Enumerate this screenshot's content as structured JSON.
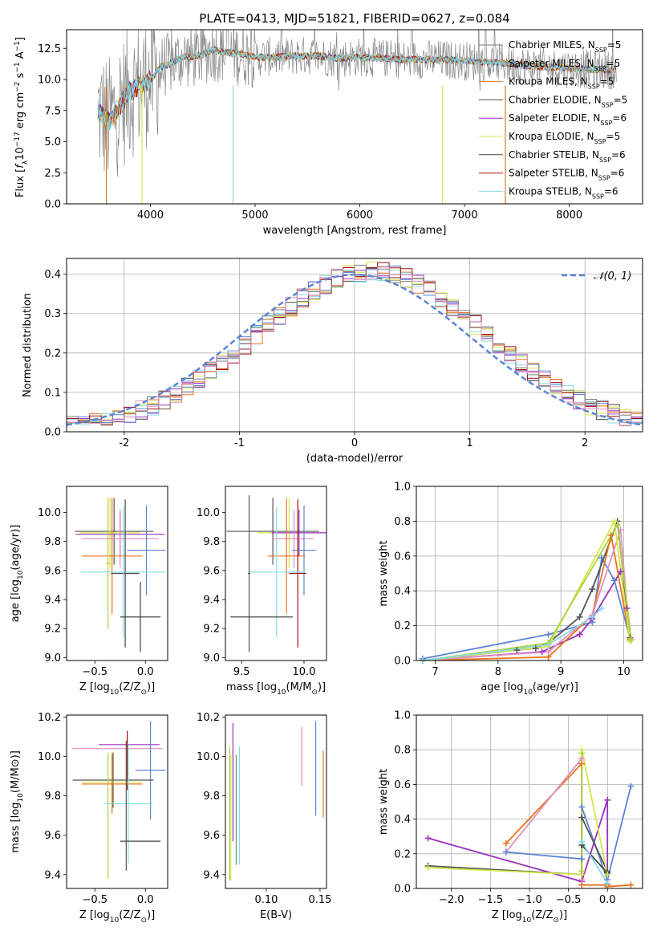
{
  "chart_data": [
    {
      "id": "spectrum",
      "type": "line",
      "title": "PLATE=0413, MJD=51821, FIBERID=0627, z=0.084",
      "xlabel": "wavelength [Angstrom, rest frame]",
      "ylabel": "Flux [fλ10^-17 erg cm^-2 s^-1 A^-1]",
      "xlim": [
        3200,
        8700
      ],
      "ylim": [
        0,
        14
      ],
      "xticks": [
        4000,
        5000,
        6000,
        7000,
        8000
      ],
      "yticks": [
        0.0,
        2.5,
        5.0,
        7.5,
        10.0,
        12.5
      ],
      "grid": false,
      "legend_position": "top-right",
      "series": [
        {
          "name": "Chabrier MILES, N_SSP=5",
          "color": "#7f7f7f"
        },
        {
          "name": "Salpeter MILES, N_SSP=5",
          "color": "#6fd0e0"
        },
        {
          "name": "Kroupa MILES, N_SSP=5",
          "color": "#e8751a"
        },
        {
          "name": "Chabrier ELODIE, N_SSP=5",
          "color": "#4a4a4a"
        },
        {
          "name": "Salpeter ELODIE, N_SSP=6",
          "color": "#9b30c0"
        },
        {
          "name": "Kroupa ELODIE, N_SSP=5",
          "color": "#d4e84a"
        },
        {
          "name": "Chabrier STELIB, N_SSP=6",
          "color": "#444444"
        },
        {
          "name": "Salpeter STELIB, N_SSP=6",
          "color": "#a01010"
        },
        {
          "name": "Kroupa STELIB, N_SSP=6",
          "color": "#88dbe6"
        }
      ],
      "continuum": {
        "x": [
          3500,
          3600,
          3700,
          3800,
          3900,
          4000,
          4100,
          4200,
          4300,
          4400,
          4500,
          4600,
          4700,
          4800,
          4900,
          5000,
          5200,
          5400,
          5600,
          5800,
          6000,
          6200,
          6400,
          6600,
          6800,
          7000,
          7200,
          7400,
          7600,
          7800,
          8000,
          8200,
          8400
        ],
        "y": [
          7.5,
          6.5,
          7.8,
          9.0,
          9.5,
          10.0,
          11.0,
          11.3,
          11.8,
          11.8,
          12.0,
          12.4,
          12.2,
          12.1,
          12.0,
          11.8,
          11.8,
          11.9,
          11.9,
          11.7,
          11.8,
          11.7,
          11.6,
          11.6,
          11.6,
          11.5,
          11.4,
          11.3,
          11.1,
          11.0,
          10.9,
          10.8,
          10.8
        ]
      },
      "dropouts": [
        3580,
        3920,
        4790,
        6790,
        7390
      ]
    },
    {
      "id": "residuals",
      "type": "line",
      "xlabel": "(data-model)/error",
      "ylabel": "Normed distribution",
      "xlim": [
        -2.5,
        2.5
      ],
      "ylim": [
        0,
        0.44
      ],
      "xticks": [
        -2,
        -1,
        0,
        1,
        2
      ],
      "yticks": [
        0.0,
        0.1,
        0.2,
        0.3,
        0.4
      ],
      "grid": true,
      "legend_position": "top-right",
      "reference": {
        "name": "𝒩(0, 1)",
        "color": "#5b84d6",
        "style": "dashed"
      },
      "bin_width": 0.1,
      "colors": [
        "#444444",
        "#9b30c0",
        "#d4e84a",
        "#e8751a",
        "#5b84d6",
        "#88dbe6",
        "#a01010",
        "#7f7f7f",
        "#e090c0"
      ]
    },
    {
      "id": "age-vs-z",
      "type": "scatter",
      "xlabel": "Z [log10(Z/Z⊙)]",
      "ylabel": "age  [log10(age/yr)]",
      "xlim": [
        -0.78,
        0.22
      ],
      "ylim": [
        8.98,
        10.18
      ],
      "xticks": [
        -0.5,
        0.0
      ],
      "xtick_labels": [
        "−0.5",
        "0.0"
      ],
      "yticks": [
        9.0,
        9.2,
        9.4,
        9.6,
        9.8,
        10.0
      ],
      "points": [
        {
          "x": -0.31,
          "y": 9.87,
          "xerr": 0.39,
          "yerr": 0.23,
          "color": "#555555"
        },
        {
          "x": -0.35,
          "y": 9.86,
          "xerr": 0.3,
          "yerr": 0.24,
          "color": "#d4e84a"
        },
        {
          "x": -0.25,
          "y": 9.85,
          "xerr": 0.44,
          "yerr": 0.16,
          "color": "#9b30c0"
        },
        {
          "x": -0.25,
          "y": 9.82,
          "xerr": 0.38,
          "yerr": 0.2,
          "color": "#e090c0"
        },
        {
          "x": -0.33,
          "y": 9.7,
          "xerr": 0.3,
          "yerr": 0.4,
          "color": "#e8751a"
        },
        {
          "x": 0.01,
          "y": 9.74,
          "xerr": 0.19,
          "yerr": 0.31,
          "color": "#5b84d6"
        },
        {
          "x": -0.2,
          "y": 9.58,
          "xerr": 0.14,
          "yerr": 0.51,
          "color": "#444444"
        },
        {
          "x": -0.22,
          "y": 9.59,
          "xerr": 0.42,
          "yerr": 0.45,
          "color": "#88dbe6"
        },
        {
          "x": -0.05,
          "y": 9.28,
          "xerr": 0.2,
          "yerr": 0.24,
          "color": "#444444"
        },
        {
          "x": -0.37,
          "y": 9.65,
          "xerr": 0.02,
          "yerr": 0.45,
          "color": "#aed13a"
        }
      ]
    },
    {
      "id": "age-vs-mass",
      "type": "scatter",
      "xlabel": "mass [log10(M/M⊙)]",
      "ylabel": "",
      "xlim": [
        9.37,
        10.18
      ],
      "ylim": [
        8.98,
        10.18
      ],
      "xticks": [
        9.5,
        10.0
      ],
      "yticks": [
        9.0,
        9.2,
        9.4,
        9.6,
        9.8,
        10.0
      ],
      "points": [
        {
          "x": 9.75,
          "y": 9.87,
          "xerr": 0.37,
          "yerr": 0.23,
          "color": "#555555"
        },
        {
          "x": 9.88,
          "y": 9.86,
          "xerr": 0.26,
          "yerr": 0.24,
          "color": "#d4e84a"
        },
        {
          "x": 9.96,
          "y": 9.86,
          "xerr": 0.22,
          "yerr": 0.16,
          "color": "#9b30c0"
        },
        {
          "x": 9.92,
          "y": 9.82,
          "xerr": 0.16,
          "yerr": 0.2,
          "color": "#e090c0"
        },
        {
          "x": 9.86,
          "y": 9.7,
          "xerr": 0.15,
          "yerr": 0.4,
          "color": "#e8751a"
        },
        {
          "x": 10.0,
          "y": 9.74,
          "xerr": 0.1,
          "yerr": 0.31,
          "color": "#5b84d6"
        },
        {
          "x": 9.95,
          "y": 9.58,
          "xerr": 0.07,
          "yerr": 0.51,
          "color": "#a01010"
        },
        {
          "x": 9.78,
          "y": 9.59,
          "xerr": 0.22,
          "yerr": 0.45,
          "color": "#88dbe6"
        },
        {
          "x": 9.56,
          "y": 9.58,
          "xerr": 0.01,
          "yerr": 0.54,
          "color": "#555555"
        },
        {
          "x": 9.66,
          "y": 9.28,
          "xerr": 0.25,
          "yerr": 0.0,
          "color": "#444444"
        }
      ]
    },
    {
      "id": "mass-weight-vs-age",
      "type": "line",
      "xlabel": "age  [log10(age/yr)]",
      "ylabel": "mass weight",
      "xlim": [
        6.7,
        10.3
      ],
      "ylim": [
        0,
        1.0
      ],
      "xticks": [
        7,
        8,
        9,
        10
      ],
      "yticks": [
        0.0,
        0.2,
        0.4,
        0.6,
        0.8,
        1.0
      ],
      "grid": true,
      "series": [
        {
          "color": "#5b84d6",
          "x": [
            6.8,
            8.8,
            9.5,
            9.65,
            9.85,
            10.1
          ],
          "y": [
            0.01,
            0.15,
            0.22,
            0.59,
            0.46,
            0.13
          ]
        },
        {
          "color": "#555555",
          "x": [
            6.8,
            8.3,
            8.6,
            8.8,
            9.3,
            9.5,
            9.9,
            10.1
          ],
          "y": [
            0.0,
            0.06,
            0.07,
            0.1,
            0.25,
            0.41,
            0.8,
            0.13
          ]
        },
        {
          "color": "#9b30c0",
          "x": [
            6.8,
            8.7,
            9.3,
            9.5,
            9.95,
            10.05
          ],
          "y": [
            0.0,
            0.05,
            0.15,
            0.24,
            0.51,
            0.3
          ]
        },
        {
          "color": "#e8751a",
          "x": [
            6.8,
            8.8,
            9.5,
            9.8,
            10.1
          ],
          "y": [
            0.0,
            0.02,
            0.26,
            0.72,
            0.12
          ]
        },
        {
          "color": "#e090c0",
          "x": [
            6.8,
            8.8,
            9.5,
            9.95,
            10.1
          ],
          "y": [
            0.0,
            0.05,
            0.26,
            0.75,
            0.11
          ]
        },
        {
          "color": "#d4e84a",
          "x": [
            6.8,
            8.8,
            9.85,
            10.1
          ],
          "y": [
            0.0,
            0.08,
            0.8,
            0.11
          ]
        },
        {
          "color": "#aed13a",
          "x": [
            6.8,
            8.8,
            9.9,
            10.12
          ],
          "y": [
            0.0,
            0.1,
            0.78,
            0.12
          ]
        },
        {
          "color": "#88dbe6",
          "x": [
            6.8,
            8.8,
            9.5,
            9.65
          ],
          "y": [
            0.0,
            0.09,
            0.25,
            0.3
          ]
        }
      ]
    },
    {
      "id": "mass-vs-z",
      "type": "scatter",
      "xlabel": "Z [log10(Z/Z⊙)]",
      "ylabel": "mass [log10(M/M⊙)]",
      "xlim": [
        -0.78,
        0.22
      ],
      "ylim": [
        9.33,
        10.21
      ],
      "xticks": [
        -0.5,
        0.0
      ],
      "xtick_labels": [
        "−0.5",
        "0.0"
      ],
      "yticks": [
        9.4,
        9.6,
        9.8,
        10.0,
        10.2
      ],
      "points": [
        {
          "x": -0.16,
          "y": 10.06,
          "xerr": 0.3,
          "yerr": 0.0,
          "color": "#9b30c0"
        },
        {
          "x": -0.28,
          "y": 10.04,
          "xerr": 0.45,
          "yerr": 0.0,
          "color": "#e090c0"
        },
        {
          "x": -0.18,
          "y": 9.98,
          "xerr": 0.0,
          "yerr": 0.15,
          "color": "#a01010"
        },
        {
          "x": 0.05,
          "y": 9.93,
          "xerr": 0.15,
          "yerr": 0.25,
          "color": "#5b84d6"
        },
        {
          "x": -0.32,
          "y": 9.88,
          "xerr": 0.4,
          "yerr": 0.14,
          "color": "#555555"
        },
        {
          "x": -0.33,
          "y": 9.87,
          "xerr": 0.3,
          "yerr": 0.15,
          "color": "#d4e84a"
        },
        {
          "x": -0.33,
          "y": 9.86,
          "xerr": 0.3,
          "yerr": 0.15,
          "color": "#e8751a"
        },
        {
          "x": -0.37,
          "y": 9.7,
          "xerr": 0.0,
          "yerr": 0.32,
          "color": "#aed13a"
        },
        {
          "x": -0.17,
          "y": 9.76,
          "xerr": 0.24,
          "yerr": 0.3,
          "color": "#88dbe6"
        },
        {
          "x": -0.05,
          "y": 9.57,
          "xerr": 0.2,
          "yerr": 0.0,
          "color": "#444444"
        },
        {
          "x": -0.19,
          "y": 9.75,
          "xerr": 0.0,
          "yerr": 0.33,
          "color": "#555555"
        }
      ]
    },
    {
      "id": "mass-vs-ebv",
      "type": "scatter",
      "xlabel": "E(B-V)",
      "ylabel": "",
      "xlim": [
        0.062,
        0.156
      ],
      "ylim": [
        9.33,
        10.21
      ],
      "xticks": [
        0.1,
        0.15
      ],
      "yticks": [
        9.4,
        9.6,
        9.8,
        10.0,
        10.2
      ],
      "points": [
        {
          "x": 0.066,
          "y": 9.71,
          "yerr": 0.34,
          "color": "#aed13a"
        },
        {
          "x": 0.067,
          "y": 9.69,
          "yerr": 0.32,
          "color": "#d4e84a"
        },
        {
          "x": 0.069,
          "y": 9.87,
          "yerr": 0.3,
          "color": "#9b30c0"
        },
        {
          "x": 0.072,
          "y": 9.73,
          "yerr": 0.28,
          "color": "#888888"
        },
        {
          "x": 0.075,
          "y": 9.75,
          "yerr": 0.3,
          "color": "#88dbe6"
        },
        {
          "x": 0.133,
          "y": 10.0,
          "yerr": 0.15,
          "color": "#e090c0"
        },
        {
          "x": 0.146,
          "y": 9.94,
          "yerr": 0.24,
          "color": "#5b84d6"
        },
        {
          "x": 0.153,
          "y": 9.86,
          "yerr": 0.17,
          "color": "#e8751a"
        }
      ]
    },
    {
      "id": "mass-weight-vs-z",
      "type": "line",
      "xlabel": "Z [log10(Z/Z⊙)]",
      "ylabel": "mass weight",
      "xlim": [
        -2.45,
        0.45
      ],
      "ylim": [
        0,
        1.0
      ],
      "xticks": [
        -2.0,
        -1.5,
        -1.0,
        -0.5,
        0.0
      ],
      "xtick_labels": [
        "−2.0",
        "−1.5",
        "−1.0",
        "−0.5",
        "0.0"
      ],
      "yticks": [
        0.0,
        0.2,
        0.4,
        0.6,
        0.8,
        1.0
      ],
      "grid": true,
      "series": [
        {
          "color": "#9b30c0",
          "x": [
            -2.3,
            -0.33,
            0.0,
            0.0
          ],
          "y": [
            0.29,
            0.04,
            0.51,
            0.02
          ]
        },
        {
          "color": "#e8751a",
          "x": [
            -1.3,
            -0.33,
            -0.33,
            0.0,
            0.0,
            0.3
          ],
          "y": [
            0.26,
            0.72,
            0.02,
            0.02,
            0.01,
            0.02
          ]
        },
        {
          "color": "#e090c0",
          "x": [
            -1.3,
            -0.33,
            -0.33
          ],
          "y": [
            0.21,
            0.75,
            0.05
          ]
        },
        {
          "color": "#5b84d6",
          "x": [
            -1.3,
            -0.33,
            -0.33,
            0.0,
            0.3
          ],
          "y": [
            0.21,
            0.17,
            0.47,
            0.05,
            0.59
          ]
        },
        {
          "color": "#555555",
          "x": [
            -2.3,
            -0.33,
            -0.33,
            0.0
          ],
          "y": [
            0.13,
            0.08,
            0.41,
            0.1
          ]
        },
        {
          "color": "#444444",
          "x": [
            -0.33,
            0.0
          ],
          "y": [
            0.25,
            0.09
          ]
        },
        {
          "color": "#d4e84a",
          "x": [
            -2.3,
            -0.33,
            -0.33,
            0.0
          ],
          "y": [
            0.12,
            0.08,
            0.8,
            0.08
          ]
        },
        {
          "color": "#aed13a",
          "x": [
            -0.33,
            -0.33
          ],
          "y": [
            0.78,
            0.1
          ]
        },
        {
          "color": "#88dbe6",
          "x": [
            -0.33,
            0.0
          ],
          "y": [
            0.27,
            0.03
          ]
        }
      ]
    }
  ]
}
